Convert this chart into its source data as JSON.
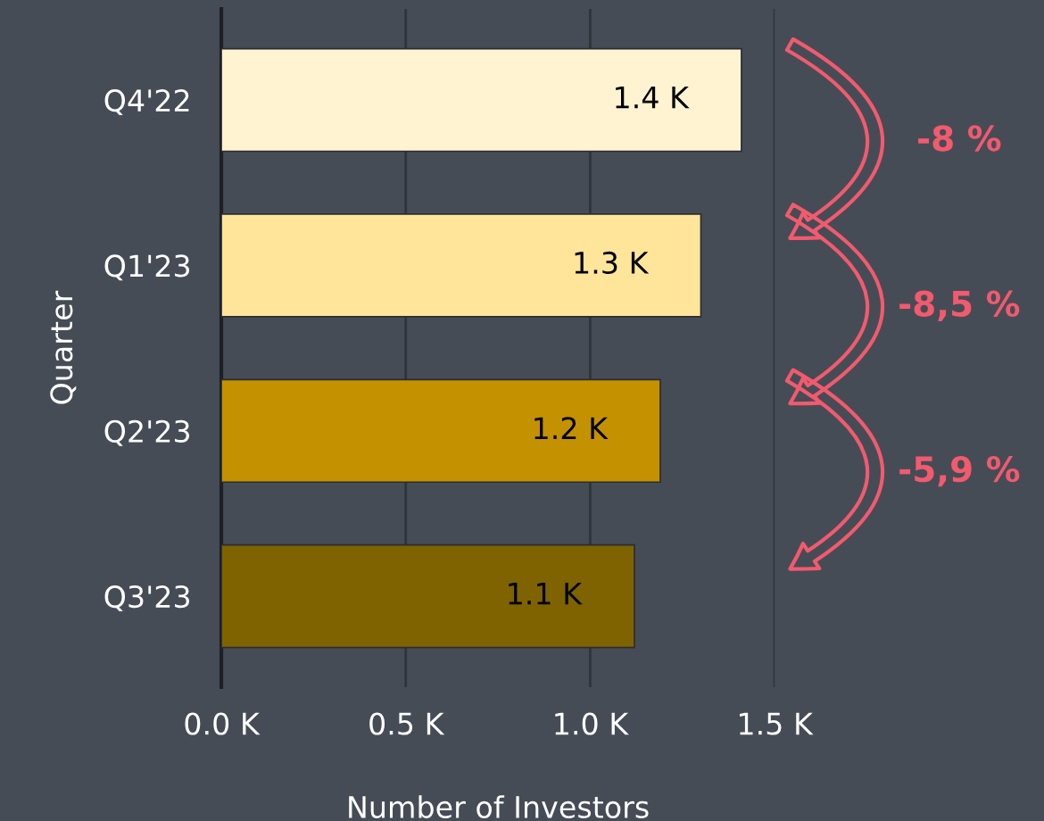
{
  "chart_data": {
    "type": "bar",
    "orientation": "horizontal",
    "categories": [
      "Q4'22",
      "Q1'23",
      "Q2'23",
      "Q3'23"
    ],
    "values": [
      1.41,
      1.3,
      1.19,
      1.12
    ],
    "value_labels": [
      "1.4 K",
      "1.3 K",
      "1.2 K",
      "1.1 K"
    ],
    "colors": [
      "#fff3d1",
      "#ffe59a",
      "#c49200",
      "#7e6300"
    ],
    "xlim": [
      0,
      1.5
    ],
    "xticks": [
      {
        "value": 0,
        "label": "0.0 K"
      },
      {
        "value": 0.5,
        "label": "0.5 K"
      },
      {
        "value": 1.0,
        "label": "1.0 K"
      },
      {
        "value": 1.5,
        "label": "1.5 K"
      }
    ],
    "xlabel": "Number of Investors",
    "ylabel": "Quarter",
    "grid": "x",
    "annotations": [
      "-8 %",
      "-8,5 %",
      "-5,9 %"
    ]
  }
}
